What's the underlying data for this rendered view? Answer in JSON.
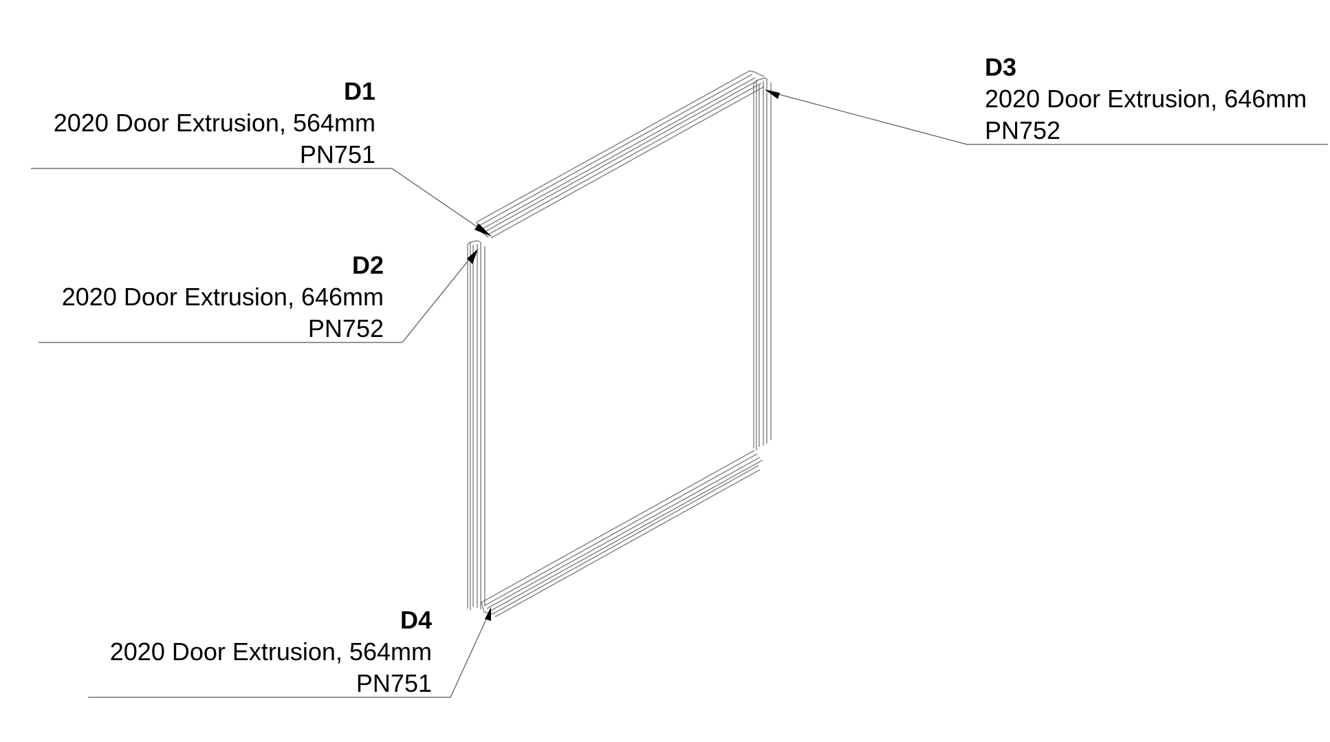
{
  "callouts": {
    "d1": {
      "id": "D1",
      "description": "2020 Door Extrusion, 564mm",
      "part_number": "PN751"
    },
    "d2": {
      "id": "D2",
      "description": "2020 Door Extrusion, 646mm",
      "part_number": "PN752"
    },
    "d3": {
      "id": "D3",
      "description": "2020 Door Extrusion, 646mm",
      "part_number": "PN752"
    },
    "d4": {
      "id": "D4",
      "description": "2020 Door Extrusion, 564mm",
      "part_number": "PN751"
    }
  },
  "colors": {
    "line": "#555555",
    "profile": "#6a6a6a",
    "text": "#000000"
  }
}
